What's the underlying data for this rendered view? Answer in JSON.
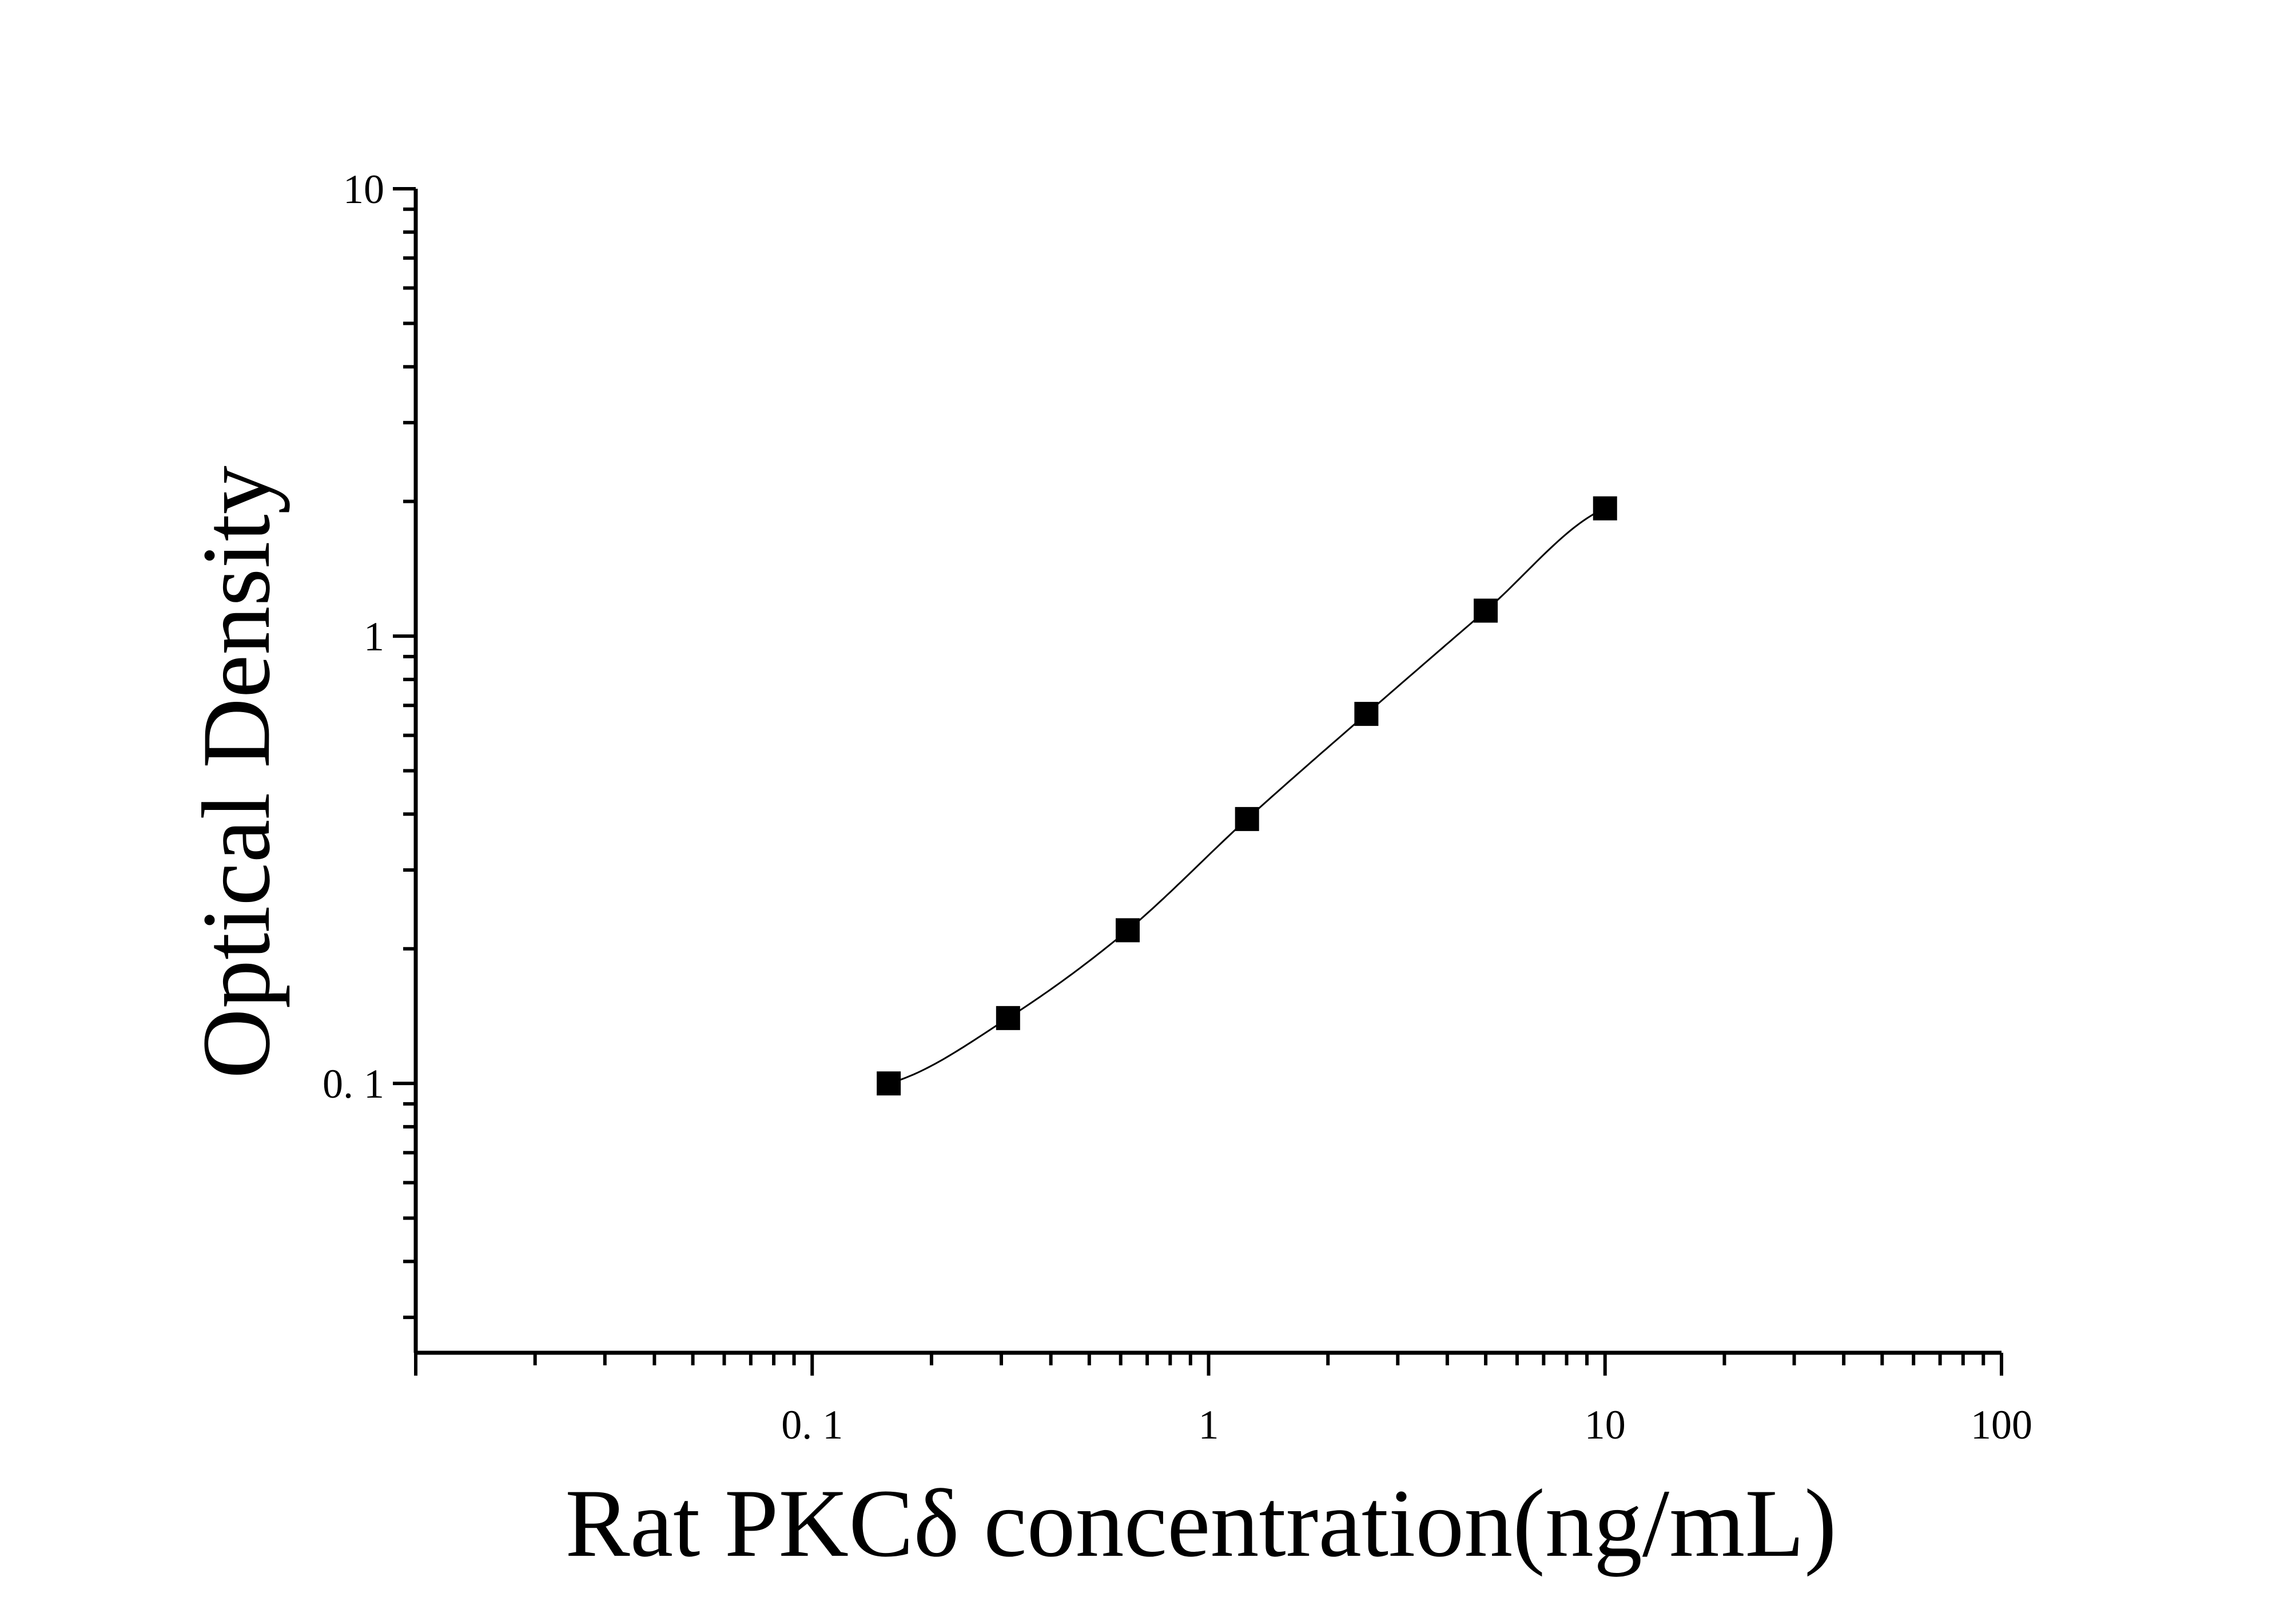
{
  "chart_data": {
    "type": "scatter",
    "title": "",
    "xlabel": "Rat PKCδ concentration(ng/mL)",
    "ylabel": "Optical Density",
    "xscale": "log",
    "yscale": "log",
    "xlim": [
      0.01,
      100
    ],
    "ylim": [
      0.025,
      10
    ],
    "grid": false,
    "legend": "none",
    "x_ticks": [
      {
        "value": 0.1,
        "label": "0. 1"
      },
      {
        "value": 1,
        "label": "1"
      },
      {
        "value": 10,
        "label": "10"
      },
      {
        "value": 100,
        "label": "100"
      }
    ],
    "y_ticks": [
      {
        "value": 0.1,
        "label": "0. 1"
      },
      {
        "value": 1,
        "label": "1"
      },
      {
        "value": 10,
        "label": "10"
      }
    ],
    "series": [
      {
        "marker": "square",
        "color": "#000000",
        "line": "smooth-fit",
        "x": [
          0.156,
          0.312,
          0.625,
          1.25,
          2.5,
          5,
          10
        ],
        "y": [
          0.1,
          0.14,
          0.22,
          0.39,
          0.67,
          1.14,
          1.93
        ]
      }
    ]
  }
}
